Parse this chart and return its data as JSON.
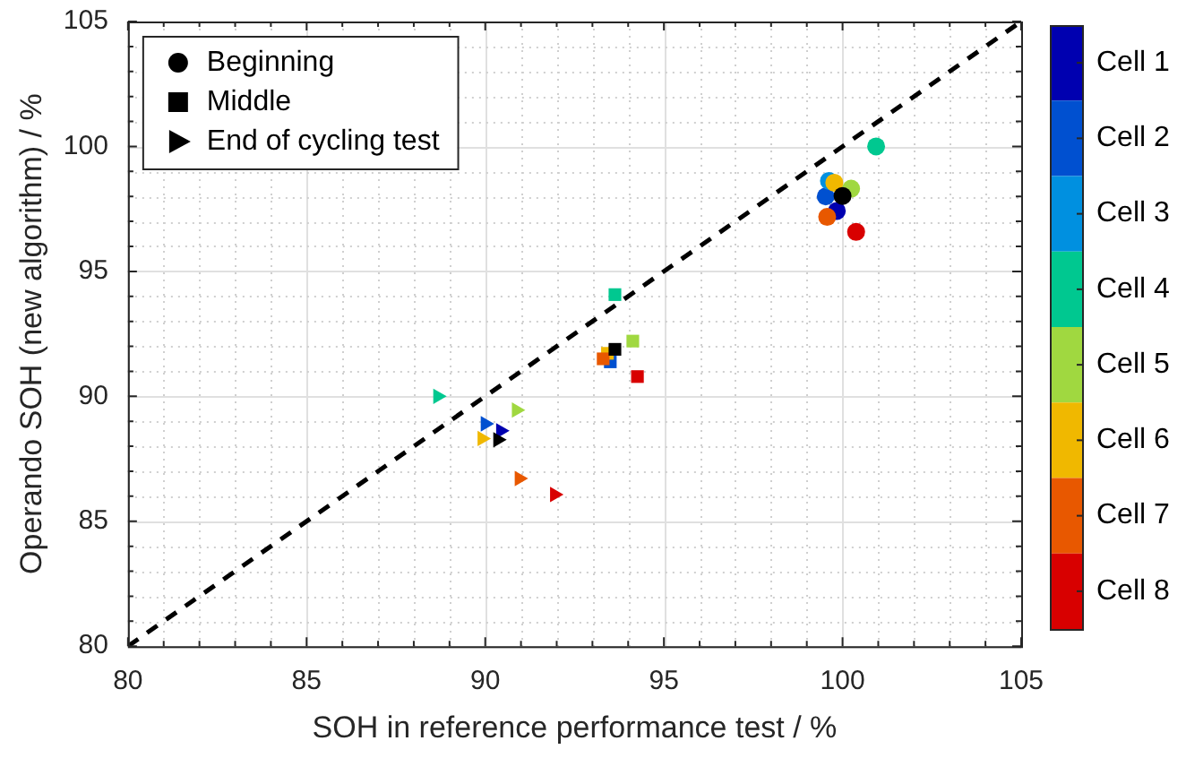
{
  "chart_data": {
    "type": "scatter",
    "xlabel": "SOH in reference performance test / %",
    "ylabel": "Operando SOH (new algorithm) / %",
    "xlim": [
      80,
      105
    ],
    "ylim": [
      80,
      105
    ],
    "xticks": [
      80,
      {
        "value": 81,
        "label": null
      },
      {
        "value": 82,
        "label": null
      },
      {
        "value": 83,
        "label": null
      },
      {
        "value": 84,
        "label": null
      },
      85,
      {
        "value": 86,
        "label": null
      },
      {
        "value": 87,
        "label": null
      },
      {
        "value": 88,
        "label": null
      },
      {
        "value": 89,
        "label": null
      },
      90,
      {
        "value": 91,
        "label": null
      },
      {
        "value": 92,
        "label": null
      },
      {
        "value": 93,
        "label": null
      },
      {
        "value": 94,
        "label": null
      },
      95,
      {
        "value": 96,
        "label": null
      },
      {
        "value": 97,
        "label": null
      },
      {
        "value": 98,
        "label": null
      },
      {
        "value": 99,
        "label": null
      },
      100,
      {
        "value": 101,
        "label": null
      },
      {
        "value": 102,
        "label": null
      },
      {
        "value": 103,
        "label": null
      },
      {
        "value": 104,
        "label": null
      },
      105
    ],
    "yticks": [
      80,
      {
        "value": 81,
        "label": null
      },
      {
        "value": 82,
        "label": null
      },
      {
        "value": 83,
        "label": null
      },
      {
        "value": 84,
        "label": null
      },
      85,
      {
        "value": 86,
        "label": null
      },
      {
        "value": 87,
        "label": null
      },
      {
        "value": 88,
        "label": null
      },
      {
        "value": 89,
        "label": null
      },
      90,
      {
        "value": 91,
        "label": null
      },
      {
        "value": 92,
        "label": null
      },
      {
        "value": 93,
        "label": null
      },
      {
        "value": 94,
        "label": null
      },
      95,
      {
        "value": 96,
        "label": null
      },
      {
        "value": 97,
        "label": null
      },
      {
        "value": 98,
        "label": null
      },
      {
        "value": 99,
        "label": null
      },
      100,
      {
        "value": 101,
        "label": null
      },
      {
        "value": 102,
        "label": null
      },
      {
        "value": 103,
        "label": null
      },
      {
        "value": 104,
        "label": null
      },
      105
    ],
    "grid": true,
    "legend": "top left",
    "clim": [
      8.5,
      0.5
    ],
    "cticks": [
      {
        "value": 1,
        "label": "Cell 1"
      },
      {
        "value": 2,
        "label": "Cell 2"
      },
      {
        "value": 3,
        "label": "Cell 3"
      },
      {
        "value": 4,
        "label": "Cell 4"
      },
      {
        "value": 5,
        "label": "Cell 5"
      },
      {
        "value": 6,
        "label": "Cell 6"
      },
      {
        "value": 7,
        "label": "Cell 7"
      },
      {
        "value": 8,
        "label": "Cell 8"
      }
    ],
    "series": [
      {
        "type": "line",
        "color": "#000000",
        "line_style": "dashed",
        "marker": "none",
        "x": [
          80,
          105
        ],
        "values": [
          80,
          105
        ]
      },
      {
        "name": "Beginning",
        "type": "scatter",
        "marker": "circle",
        "color": "#000000",
        "x": [
          99.84,
          99.53,
          99.62,
          100.94,
          100.24,
          99.77,
          99.57,
          100.38,
          100.0
        ],
        "values": [
          97.42,
          98.0,
          98.62,
          100.0,
          98.31,
          98.55,
          97.18,
          96.58,
          98.02
        ],
        "colors": [
          "#0000b0",
          "#0050d0",
          "#0090e0",
          "#00c890",
          "#a0d840",
          "#f0b800",
          "#e85800",
          "#d80000",
          "#000000"
        ]
      },
      {
        "name": "Middle",
        "type": "scatter",
        "marker": "square",
        "color": "#000000",
        "x": [
          null,
          93.5,
          null,
          93.63,
          94.13,
          93.42,
          93.3,
          94.26,
          93.63
        ],
        "values": [
          null,
          91.38,
          null,
          94.07,
          92.21,
          91.72,
          91.5,
          90.79,
          91.88
        ],
        "colors": [
          "#0000b0",
          "#0050d0",
          "#0090e0",
          "#00c890",
          "#a0d840",
          "#f0b800",
          "#e85800",
          "#d80000",
          "#000000"
        ]
      },
      {
        "name": "End of cycling test",
        "type": "scatter",
        "marker": "triangle",
        "color": "#000000",
        "x": [
          90.43,
          90.0,
          null,
          88.67,
          90.87,
          89.91,
          90.95,
          91.94,
          90.35
        ],
        "values": [
          88.62,
          88.9,
          null,
          90.0,
          89.45,
          88.31,
          86.71,
          86.07,
          88.26
        ],
        "colors": [
          "#0000b0",
          "#0050d0",
          "#0090e0",
          "#00c890",
          "#a0d840",
          "#f0b800",
          "#e85800",
          "#d80000",
          "#000000"
        ]
      }
    ]
  }
}
